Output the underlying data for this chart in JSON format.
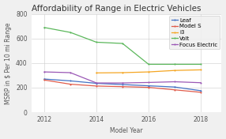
{
  "title": "Affordability of Range in Electric Vehicles",
  "xlabel": "Model Year",
  "ylabel": "MSRP in $ Per 10 mi Range",
  "series": {
    "Leaf": {
      "color": "#4472C4",
      "x": [
        2012,
        2013,
        2014,
        2015,
        2016,
        2017,
        2018
      ],
      "y": [
        270,
        255,
        235,
        225,
        215,
        205,
        175
      ]
    },
    "Model S": {
      "color": "#E05C4B",
      "x": [
        2012,
        2013,
        2014,
        2015,
        2016,
        2017,
        2018
      ],
      "y": [
        262,
        228,
        213,
        208,
        202,
        182,
        162
      ]
    },
    "i3": {
      "color": "#F5A623",
      "x": [
        2014,
        2015,
        2016,
        2017,
        2018
      ],
      "y": [
        320,
        322,
        328,
        340,
        345
      ]
    },
    "Volt": {
      "color": "#5CB85C",
      "x": [
        2012,
        2013,
        2014,
        2015,
        2016,
        2017,
        2018
      ],
      "y": [
        690,
        650,
        570,
        560,
        390,
        390,
        390
      ]
    },
    "Focus Electric": {
      "color": "#9B59B6",
      "x": [
        2012,
        2013,
        2014,
        2015,
        2016,
        2017,
        2018
      ],
      "y": [
        328,
        322,
        238,
        238,
        242,
        248,
        240
      ]
    }
  },
  "xlim": [
    2011.5,
    2018.8
  ],
  "ylim": [
    0,
    800
  ],
  "yticks": [
    0,
    200,
    400,
    600,
    800
  ],
  "xticks": [
    2012,
    2014,
    2016,
    2018
  ],
  "background_color": "#f0f0f0",
  "plot_bg_color": "#ffffff",
  "legend_loc": "upper right",
  "title_fontsize": 7.5,
  "axis_label_fontsize": 5.5,
  "tick_fontsize": 5.5,
  "legend_fontsize": 5.0,
  "linewidth": 0.9,
  "marker_size": 1.5
}
